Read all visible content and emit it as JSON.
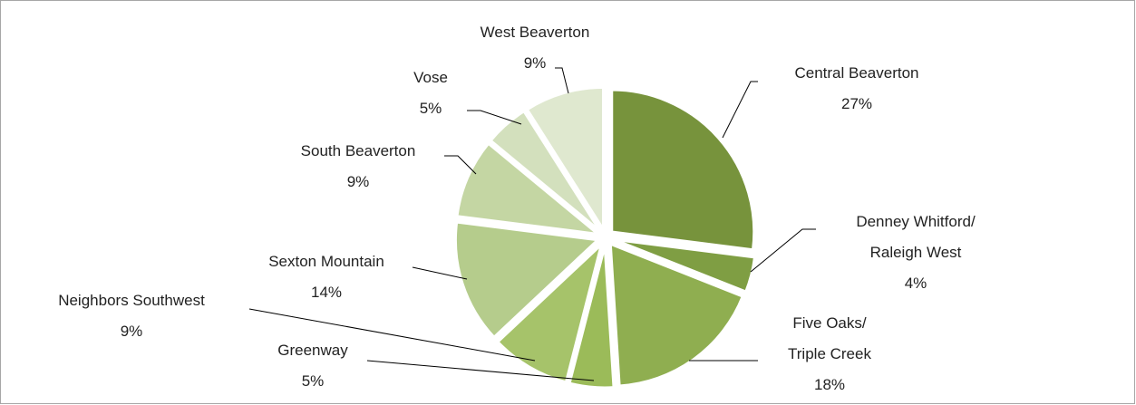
{
  "chart_data": {
    "type": "pie",
    "categories": [
      "Central Beaverton",
      "Denney Whitford/\nRaleigh West",
      "Five Oaks/\nTriple Creek",
      "Greenway",
      "Neighbors Southwest",
      "Sexton Mountain",
      "South Beaverton",
      "Vose",
      "West Beaverton"
    ],
    "values": [
      27,
      4,
      18,
      5,
      9,
      14,
      9,
      5,
      9
    ],
    "value_labels": [
      "27%",
      "4%",
      "18%",
      "5%",
      "9%",
      "14%",
      "9%",
      "5%",
      "9%"
    ],
    "colors": [
      "#77933c",
      "#7f9e43",
      "#8fae50",
      "#9bbb59",
      "#a6c36a",
      "#b5cc8c",
      "#c4d6a3",
      "#d3e0bd",
      "#dfe8cf"
    ]
  }
}
